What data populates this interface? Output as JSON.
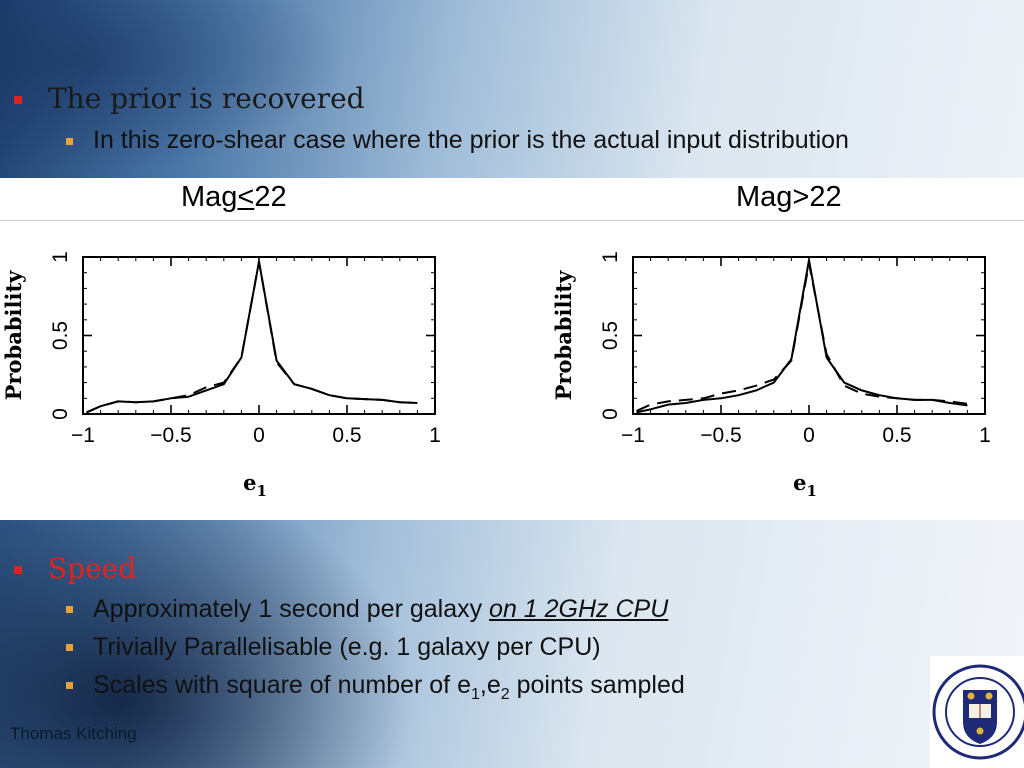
{
  "slide": {
    "heading1": "The prior is recovered",
    "sub1": "In this zero-shear case where the prior is the actual input distribution",
    "heading2": "Speed",
    "speed_items": [
      {
        "text": "Approximately 1 second per galaxy ",
        "emph": "on 1 2GHz CPU"
      },
      {
        "text": "Trivially Parallelisable (e.g. 1 galaxy per CPU)"
      }
    ],
    "scales": {
      "pre": "Scales with square of number of e",
      "s1": "1",
      "mid": ",e",
      "s2": "2",
      "post": " points sampled"
    },
    "author": "Thomas Kitching",
    "logo_text": "UNIVERSITY · OF · OXFORD",
    "colors": {
      "heading1": "#1a1a1a",
      "heading2": "#e0241c",
      "bullet1": "#d22",
      "bullet2": "#e8a23a"
    }
  },
  "chart_data": [
    {
      "type": "line",
      "title_pre": "Mag",
      "title_sym": "<",
      "title_post": "22",
      "xlabel": "e",
      "xlabel_sub": "1",
      "ylabel": "Probability",
      "xlim": [
        -1,
        1
      ],
      "ylim": [
        0,
        1
      ],
      "xticks": [
        -1,
        -0.5,
        0,
        0.5,
        1
      ],
      "xtick_labels": [
        "−1",
        "−0.5",
        "0",
        "0.5",
        "1"
      ],
      "yticks": [
        0,
        0.5,
        1
      ],
      "ytick_labels": [
        "0",
        "0.5",
        "1"
      ],
      "series": [
        {
          "style": "solid",
          "x": [
            -0.98,
            -0.9,
            -0.8,
            -0.7,
            -0.6,
            -0.5,
            -0.4,
            -0.3,
            -0.2,
            -0.1,
            0,
            0.1,
            0.2,
            0.3,
            0.4,
            0.5,
            0.6,
            0.7,
            0.8,
            0.9
          ],
          "y": [
            0.01,
            0.05,
            0.08,
            0.075,
            0.08,
            0.1,
            0.11,
            0.15,
            0.19,
            0.36,
            0.97,
            0.34,
            0.19,
            0.16,
            0.12,
            0.1,
            0.095,
            0.09,
            0.075,
            0.07
          ]
        },
        {
          "style": "dashed",
          "x": [
            -0.98,
            -0.9,
            -0.8,
            -0.7,
            -0.6,
            -0.5,
            -0.4,
            -0.3,
            -0.2,
            -0.1,
            0,
            0.1,
            0.2,
            0.3,
            0.4,
            0.5,
            0.6,
            0.7,
            0.8,
            0.9
          ],
          "y": [
            0.01,
            0.05,
            0.08,
            0.075,
            0.08,
            0.1,
            0.12,
            0.17,
            0.2,
            0.36,
            0.97,
            0.33,
            0.19,
            0.16,
            0.12,
            0.1,
            0.095,
            0.09,
            0.075,
            0.07
          ]
        }
      ]
    },
    {
      "type": "line",
      "title_pre": "Mag",
      "title_sym": ">",
      "title_post": "22",
      "xlabel": "e",
      "xlabel_sub": "1",
      "ylabel": "Probability",
      "xlim": [
        -1,
        1
      ],
      "ylim": [
        0,
        1
      ],
      "xticks": [
        -1,
        -0.5,
        0,
        0.5,
        1
      ],
      "xtick_labels": [
        "−1",
        "−0.5",
        "0",
        "0.5",
        "1"
      ],
      "yticks": [
        0,
        0.5,
        1
      ],
      "ytick_labels": [
        "0",
        "0.5",
        "1"
      ],
      "series": [
        {
          "style": "solid",
          "x": [
            -0.98,
            -0.9,
            -0.8,
            -0.7,
            -0.6,
            -0.5,
            -0.4,
            -0.3,
            -0.2,
            -0.1,
            0,
            0.1,
            0.2,
            0.3,
            0.4,
            0.5,
            0.6,
            0.7,
            0.8,
            0.9
          ],
          "y": [
            0.01,
            0.03,
            0.06,
            0.07,
            0.09,
            0.1,
            0.12,
            0.15,
            0.2,
            0.35,
            0.98,
            0.36,
            0.2,
            0.15,
            0.12,
            0.1,
            0.09,
            0.09,
            0.07,
            0.055
          ]
        },
        {
          "style": "dashed",
          "x": [
            -0.98,
            -0.9,
            -0.8,
            -0.7,
            -0.6,
            -0.5,
            -0.4,
            -0.3,
            -0.2,
            -0.1,
            0,
            0.1,
            0.2,
            0.3,
            0.4,
            0.5,
            0.6,
            0.7,
            0.8,
            0.9
          ],
          "y": [
            0.02,
            0.06,
            0.08,
            0.09,
            0.1,
            0.13,
            0.15,
            0.18,
            0.22,
            0.34,
            0.96,
            0.38,
            0.18,
            0.13,
            0.11,
            0.1,
            0.09,
            0.09,
            0.08,
            0.065
          ]
        }
      ]
    }
  ]
}
